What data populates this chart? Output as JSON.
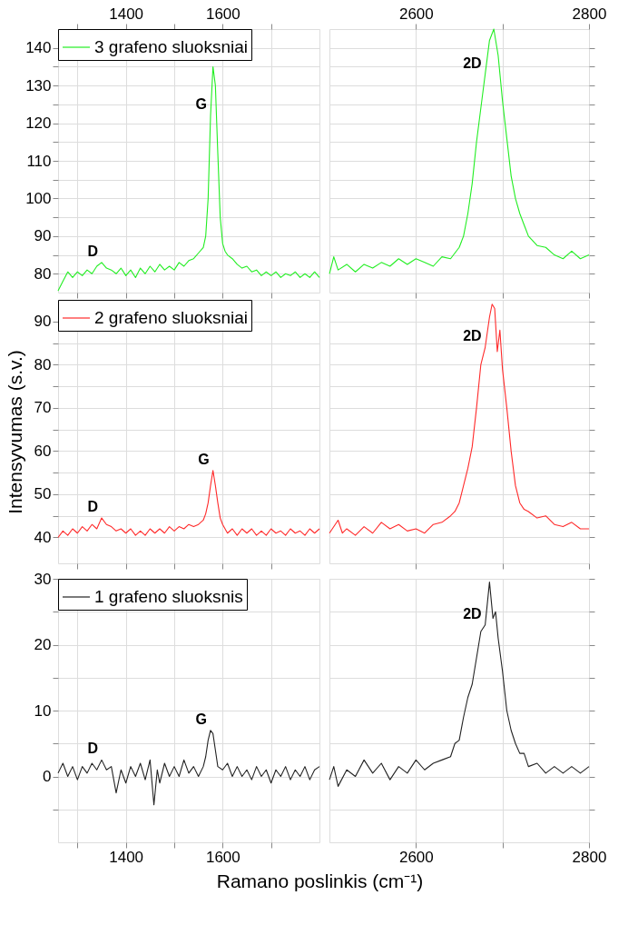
{
  "chart_data": [
    {
      "type": "line",
      "legend": "top left",
      "grid": true,
      "tick_labels": "y",
      "xlim": [
        1260,
        1800
      ],
      "xticks": [
        1300,
        1400,
        1500,
        1600,
        1700
      ],
      "x2lim": [
        1260,
        1800
      ],
      "x2ticks": [
        {
          "value": 1300,
          "label": null
        },
        1400,
        {
          "value": 1500,
          "label": null
        },
        1600,
        {
          "value": 1700,
          "label": null
        }
      ],
      "ylim": [
        75,
        145
      ],
      "yticks": [
        80,
        {
          "value": 85,
          "label": null
        },
        90,
        {
          "value": 95,
          "label": null
        },
        100,
        {
          "value": 105,
          "label": null
        },
        110,
        {
          "value": 115,
          "label": null
        },
        120,
        {
          "value": 125,
          "label": null
        },
        130,
        {
          "value": 135,
          "label": null
        },
        140
      ],
      "annotations": [
        {
          "text": "D",
          "x": 1350,
          "y": 83
        },
        {
          "text": "G",
          "x": 1575,
          "y": 122
        }
      ],
      "series": [
        {
          "name": "3 grafeno sluoksniai",
          "color": "#22ee22",
          "x": [
            1260,
            1270,
            1280,
            1290,
            1300,
            1310,
            1320,
            1330,
            1340,
            1350,
            1360,
            1370,
            1380,
            1390,
            1400,
            1410,
            1420,
            1430,
            1440,
            1450,
            1460,
            1470,
            1480,
            1490,
            1500,
            1510,
            1520,
            1530,
            1540,
            1550,
            1560,
            1565,
            1570,
            1575,
            1580,
            1585,
            1590,
            1595,
            1600,
            1605,
            1610,
            1620,
            1630,
            1640,
            1650,
            1660,
            1670,
            1680,
            1690,
            1700,
            1710,
            1720,
            1730,
            1740,
            1750,
            1760,
            1770,
            1780,
            1790,
            1800
          ],
          "values": [
            75.5,
            78,
            80.5,
            79,
            80.5,
            79.5,
            81,
            80,
            82,
            83,
            81.5,
            81,
            80,
            81.5,
            79.5,
            81,
            79,
            81.5,
            80,
            82,
            80.5,
            82.5,
            81,
            82,
            81,
            83,
            82,
            83.5,
            84,
            85.5,
            87,
            90,
            100,
            122,
            135,
            130,
            112,
            95,
            88,
            86,
            85,
            84,
            82.5,
            81.5,
            82,
            80.5,
            81,
            79.5,
            80.5,
            79.5,
            80.5,
            79,
            80,
            79.5,
            80.5,
            79,
            80,
            79,
            80.5,
            79
          ]
        }
      ]
    },
    {
      "type": "line",
      "grid": true,
      "tick_labels": false,
      "xlim": [
        2500,
        2800
      ],
      "xticks": [
        2600,
        2700,
        2800
      ],
      "x2lim": [
        2500,
        2800
      ],
      "x2ticks": [
        2600,
        {
          "value": 2700,
          "label": null
        },
        2800
      ],
      "ylim": [
        75,
        145
      ],
      "yticks": [
        80,
        {
          "value": 85,
          "label": null
        },
        90,
        {
          "value": 95,
          "label": null
        },
        100,
        {
          "value": 105,
          "label": null
        },
        110,
        {
          "value": 115,
          "label": null
        },
        120,
        {
          "value": 125,
          "label": null
        },
        130,
        {
          "value": 135,
          "label": null
        },
        140
      ],
      "annotations": [
        {
          "text": "2D",
          "x": 2680,
          "y": 133
        }
      ],
      "series": [
        {
          "color": "#22ee22",
          "x": [
            2500,
            2505,
            2510,
            2520,
            2530,
            2540,
            2550,
            2560,
            2570,
            2580,
            2590,
            2600,
            2610,
            2620,
            2630,
            2640,
            2650,
            2655,
            2660,
            2665,
            2670,
            2675,
            2680,
            2685,
            2690,
            2695,
            2700,
            2703,
            2705,
            2710,
            2715,
            2720,
            2725,
            2730,
            2740,
            2750,
            2760,
            2770,
            2780,
            2790,
            2800
          ],
          "values": [
            80,
            84.5,
            81,
            82.5,
            80.5,
            82.5,
            81.5,
            83,
            82,
            84,
            82.5,
            84,
            83,
            82,
            84.5,
            84,
            87,
            90,
            96,
            104,
            115,
            124,
            133,
            142,
            145,
            138,
            126,
            120,
            116,
            106,
            100,
            96,
            93,
            90,
            87.5,
            87,
            85,
            84,
            86,
            84,
            85
          ]
        }
      ]
    },
    {
      "type": "line",
      "legend": "top left",
      "grid": true,
      "tick_labels": "y",
      "ylabel": "Intensyvumas (s.v.)",
      "xlim": [
        1260,
        1800
      ],
      "xticks": [
        {
          "value": 1300,
          "label": null
        },
        {
          "value": 1400,
          "label": null
        },
        {
          "value": 1500,
          "label": null
        },
        {
          "value": 1600,
          "label": null
        },
        {
          "value": 1700,
          "label": null
        }
      ],
      "ylim": [
        34,
        95
      ],
      "yticks": [
        40,
        {
          "value": 45,
          "label": null
        },
        50,
        {
          "value": 55,
          "label": null
        },
        60,
        {
          "value": 65,
          "label": null
        },
        70,
        {
          "value": 75,
          "label": null
        },
        80,
        {
          "value": 85,
          "label": null
        },
        90
      ],
      "annotations": [
        {
          "text": "D",
          "x": 1350,
          "y": 44.5
        },
        {
          "text": "G",
          "x": 1580,
          "y": 55.5
        }
      ],
      "series": [
        {
          "name": "2 grafeno sluoksniai",
          "color": "#ff2a2a",
          "x": [
            1260,
            1270,
            1280,
            1290,
            1300,
            1310,
            1320,
            1330,
            1340,
            1350,
            1360,
            1370,
            1380,
            1390,
            1400,
            1410,
            1420,
            1430,
            1440,
            1450,
            1460,
            1470,
            1480,
            1490,
            1500,
            1510,
            1520,
            1530,
            1540,
            1550,
            1560,
            1565,
            1570,
            1575,
            1580,
            1585,
            1590,
            1595,
            1600,
            1610,
            1620,
            1630,
            1640,
            1650,
            1660,
            1670,
            1680,
            1690,
            1700,
            1710,
            1720,
            1730,
            1740,
            1750,
            1760,
            1770,
            1780,
            1790,
            1800
          ],
          "values": [
            40,
            41.5,
            40.5,
            42,
            41,
            42.5,
            41.5,
            43,
            42,
            44.5,
            43,
            42.5,
            41.5,
            42,
            41,
            42,
            40.5,
            41.5,
            40.5,
            42,
            41,
            42,
            41,
            42.5,
            41.5,
            42.5,
            42,
            43,
            42.5,
            43,
            44,
            45.5,
            48,
            52,
            55.5,
            52,
            48,
            44.5,
            43,
            41,
            42,
            40.5,
            42,
            41,
            42,
            40.5,
            41.5,
            40.5,
            42,
            41,
            41.5,
            40.5,
            42,
            41,
            41.5,
            40.5,
            42,
            41,
            42
          ]
        }
      ]
    },
    {
      "type": "line",
      "grid": true,
      "tick_labels": false,
      "xlim": [
        2500,
        2800
      ],
      "xticks": [
        {
          "value": 2600,
          "label": null
        },
        {
          "value": 2700,
          "label": null
        },
        {
          "value": 2800,
          "label": null
        }
      ],
      "ylim": [
        34,
        95
      ],
      "yticks": [
        40,
        {
          "value": 45,
          "label": null
        },
        50,
        {
          "value": 55,
          "label": null
        },
        60,
        {
          "value": 65,
          "label": null
        },
        70,
        {
          "value": 75,
          "label": null
        },
        80,
        {
          "value": 85,
          "label": null
        },
        90
      ],
      "annotations": [
        {
          "text": "2D",
          "x": 2680,
          "y": 84
        }
      ],
      "series": [
        {
          "color": "#ff2a2a",
          "x": [
            2500,
            2510,
            2515,
            2520,
            2530,
            2540,
            2550,
            2560,
            2570,
            2580,
            2590,
            2600,
            2610,
            2620,
            2630,
            2640,
            2645,
            2650,
            2655,
            2660,
            2665,
            2670,
            2675,
            2680,
            2685,
            2688,
            2691,
            2694,
            2697,
            2700,
            2705,
            2710,
            2715,
            2720,
            2725,
            2730,
            2740,
            2750,
            2760,
            2770,
            2780,
            2790,
            2800
          ],
          "values": [
            41,
            44,
            41,
            42,
            40.5,
            42.5,
            41,
            43.5,
            42,
            43,
            41.5,
            42,
            41,
            43,
            43.5,
            45,
            46,
            48,
            52,
            56,
            61,
            70,
            80,
            84,
            91,
            94,
            93,
            83,
            88,
            79,
            70,
            60,
            52,
            48,
            46.5,
            46,
            44.5,
            45,
            43,
            42.5,
            43.5,
            42,
            42
          ]
        }
      ]
    },
    {
      "type": "line",
      "legend": "top left",
      "grid": true,
      "xlabel": "Ramano poslinkis (cm⁻¹)",
      "xlim": [
        1260,
        1800
      ],
      "xticks": [
        {
          "value": 1300,
          "label": null
        },
        1400,
        {
          "value": 1500,
          "label": null
        },
        1600,
        {
          "value": 1700,
          "label": null
        }
      ],
      "ylim": [
        -10,
        30
      ],
      "yticks": [
        {
          "value": -5,
          "label": null
        },
        0,
        {
          "value": 5,
          "label": null
        },
        10,
        {
          "value": 15,
          "label": null
        },
        20,
        {
          "value": 25,
          "label": null
        },
        30
      ],
      "annotations": [
        {
          "text": "D",
          "x": 1350,
          "y": 2.5
        },
        {
          "text": "G",
          "x": 1575,
          "y": 7
        }
      ],
      "series": [
        {
          "name": "1 grafeno sluoksnis",
          "color": "#222222",
          "x": [
            1260,
            1270,
            1280,
            1290,
            1300,
            1310,
            1320,
            1330,
            1340,
            1350,
            1360,
            1370,
            1380,
            1390,
            1400,
            1410,
            1420,
            1430,
            1440,
            1450,
            1458,
            1465,
            1470,
            1480,
            1490,
            1500,
            1510,
            1520,
            1530,
            1540,
            1550,
            1560,
            1565,
            1570,
            1575,
            1580,
            1585,
            1590,
            1600,
            1610,
            1620,
            1630,
            1640,
            1650,
            1660,
            1670,
            1680,
            1690,
            1700,
            1710,
            1720,
            1730,
            1740,
            1750,
            1760,
            1770,
            1780,
            1790,
            1800
          ],
          "values": [
            0.5,
            2,
            0,
            1.5,
            -0.5,
            1.5,
            0.5,
            2,
            1,
            2.5,
            1,
            1.5,
            -2.5,
            1,
            -1,
            1.5,
            0,
            2,
            -0.5,
            2.5,
            -4.3,
            1,
            -1,
            2,
            0,
            1.5,
            0,
            2.5,
            0.5,
            1.5,
            0,
            1.5,
            3,
            5.5,
            7,
            6.5,
            4,
            1.5,
            1,
            2,
            0,
            1.5,
            0,
            1,
            -0.5,
            1.5,
            0,
            1,
            -1,
            1,
            0,
            1.5,
            -0.5,
            1,
            0,
            1.5,
            -0.5,
            1,
            1.5
          ]
        }
      ]
    },
    {
      "type": "line",
      "grid": true,
      "tick_labels": "x",
      "xlim": [
        2500,
        2800
      ],
      "xticks": [
        2600,
        {
          "value": 2700,
          "label": null
        },
        2800
      ],
      "ylim": [
        -10,
        30
      ],
      "yticks": [
        {
          "value": -5,
          "label": null
        },
        0,
        {
          "value": 5,
          "label": null
        },
        10,
        {
          "value": 15,
          "label": null
        },
        20,
        {
          "value": 25,
          "label": null
        },
        30
      ],
      "annotations": [
        {
          "text": "2D",
          "x": 2680,
          "y": 23
        }
      ],
      "series": [
        {
          "color": "#222222",
          "x": [
            2500,
            2505,
            2510,
            2520,
            2530,
            2540,
            2550,
            2560,
            2570,
            2580,
            2590,
            2600,
            2610,
            2620,
            2630,
            2640,
            2645,
            2650,
            2655,
            2660,
            2665,
            2670,
            2675,
            2680,
            2685,
            2689,
            2692,
            2695,
            2700,
            2705,
            2710,
            2715,
            2720,
            2725,
            2730,
            2740,
            2750,
            2760,
            2770,
            2780,
            2790,
            2800
          ],
          "values": [
            -0.5,
            1.5,
            -1.5,
            1,
            0,
            2.5,
            0.5,
            2,
            -0.5,
            1.5,
            0.5,
            2.5,
            1,
            2,
            2.5,
            3,
            5,
            5.5,
            9,
            12,
            14,
            18,
            22,
            23,
            29.5,
            24,
            25,
            21,
            16,
            10,
            7,
            5,
            3.5,
            3.5,
            1.5,
            2,
            0.5,
            1.5,
            0.5,
            1.5,
            0.5,
            1.5
          ]
        }
      ]
    }
  ]
}
